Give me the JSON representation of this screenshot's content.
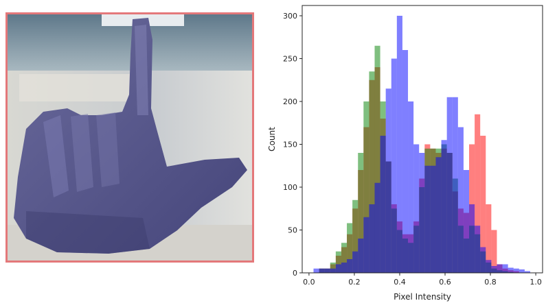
{
  "image": {
    "description_icon": "hand-sign-icon",
    "border_color": "#e4787a"
  },
  "chart_data": {
    "type": "bar",
    "title": "",
    "xlabel": "Pixel Intensity",
    "ylabel": "Count",
    "xlim": [
      -0.03,
      1.03
    ],
    "ylim": [
      0,
      312
    ],
    "xticks": [
      0.0,
      0.2,
      0.4,
      0.6,
      0.8,
      1.0
    ],
    "xtick_labels": [
      "0.0",
      "0.2",
      "0.4",
      "0.6",
      "0.8",
      "1.0"
    ],
    "yticks": [
      0,
      50,
      100,
      150,
      200,
      250,
      300
    ],
    "ytick_labels": [
      "0",
      "50",
      "100",
      "150",
      "200",
      "250",
      "300"
    ],
    "grid": false,
    "legend": false,
    "bins": 40,
    "bin_range": [
      0.02,
      1.0
    ],
    "series": [
      {
        "color": "#ff0000",
        "opacity": 0.5,
        "values": [
          0,
          5,
          5,
          10,
          20,
          30,
          45,
          75,
          120,
          170,
          225,
          240,
          180,
          130,
          80,
          60,
          45,
          45,
          60,
          110,
          150,
          145,
          140,
          145,
          140,
          95,
          75,
          70,
          150,
          185,
          160,
          80,
          50,
          10,
          5,
          3,
          2,
          0,
          0,
          0
        ]
      },
      {
        "color": "#008000",
        "opacity": 0.5,
        "values": [
          0,
          5,
          5,
          12,
          25,
          35,
          58,
          85,
          140,
          200,
          235,
          265,
          200,
          130,
          75,
          50,
          40,
          35,
          55,
          100,
          145,
          145,
          145,
          150,
          140,
          110,
          55,
          40,
          55,
          45,
          25,
          12,
          5,
          3,
          2,
          1,
          0,
          0,
          0,
          0
        ]
      },
      {
        "color": "#0000ff",
        "opacity": 0.5,
        "values": [
          5,
          5,
          5,
          5,
          10,
          12,
          16,
          25,
          40,
          65,
          80,
          105,
          160,
          215,
          250,
          300,
          260,
          200,
          150,
          140,
          125,
          125,
          135,
          155,
          205,
          205,
          170,
          120,
          80,
          55,
          30,
          15,
          8,
          10,
          10,
          6,
          5,
          4,
          2,
          0
        ]
      }
    ]
  }
}
